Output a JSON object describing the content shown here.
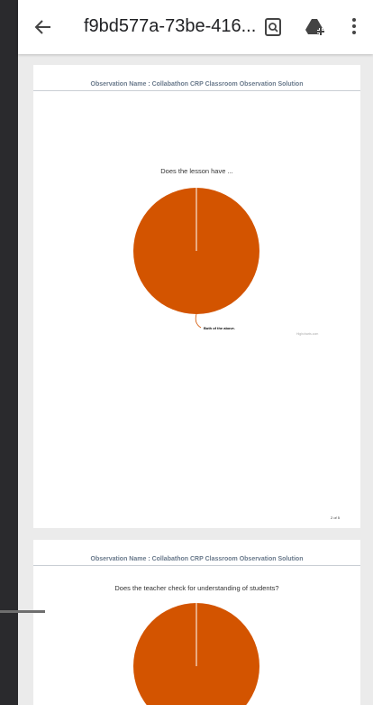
{
  "app_bar": {
    "title": "f9bd577a-73be-416..."
  },
  "pages": [
    {
      "header": "Observation Name : Collabathon CRP Classroom Observation Solution",
      "question": "Does the lesson have ...",
      "slice_label": "Both of the above.",
      "credit": "Highcharts.com",
      "page_number": "2 of 5"
    },
    {
      "header": "Observation Name : Collabathon CRP Classroom Observation Solution",
      "question": "Does the teacher check for understanding of students?"
    }
  ]
}
